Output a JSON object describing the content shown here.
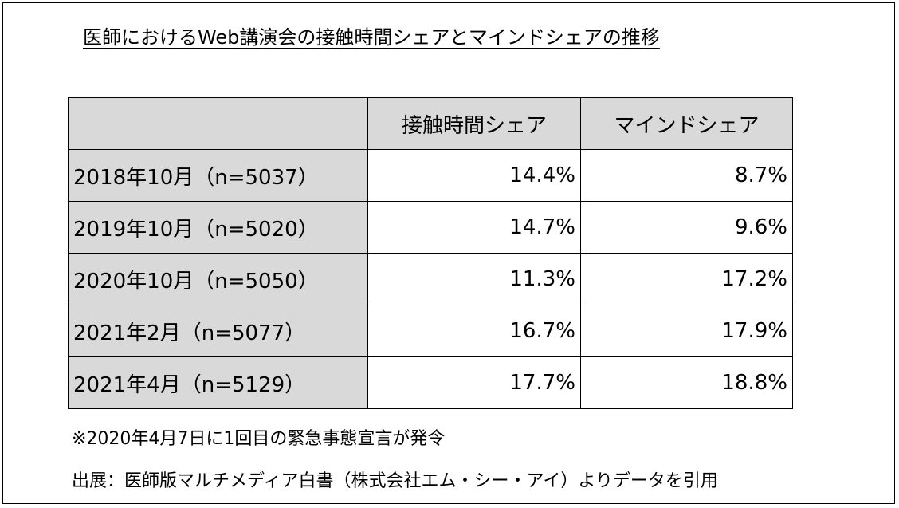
{
  "chart_data": {
    "type": "table",
    "title": "医師におけるWeb講演会の接触時間シェアとマインドシェアの推移",
    "columns": [
      "",
      "接触時間シェア",
      "マインドシェア"
    ],
    "rows": [
      {
        "label": "2018年10月（n=5037）",
        "contact_share": "14.4%",
        "mind_share": "8.7%"
      },
      {
        "label": "2019年10月（n=5020）",
        "contact_share": "14.7%",
        "mind_share": "9.6%"
      },
      {
        "label": "2020年10月（n=5050）",
        "contact_share": "11.3%",
        "mind_share": "17.2%"
      },
      {
        "label": "2021年2月（n=5077）",
        "contact_share": "16.7%",
        "mind_share": "17.9%"
      },
      {
        "label": "2021年4月（n=5129）",
        "contact_share": "17.7%",
        "mind_share": "18.8%"
      }
    ],
    "note": "※2020年4月7日に1回目の緊急事態宣言が発令",
    "source": "出展：医師版マルチメディア白書（株式会社エム・シー・アイ）よりデータを引用"
  }
}
